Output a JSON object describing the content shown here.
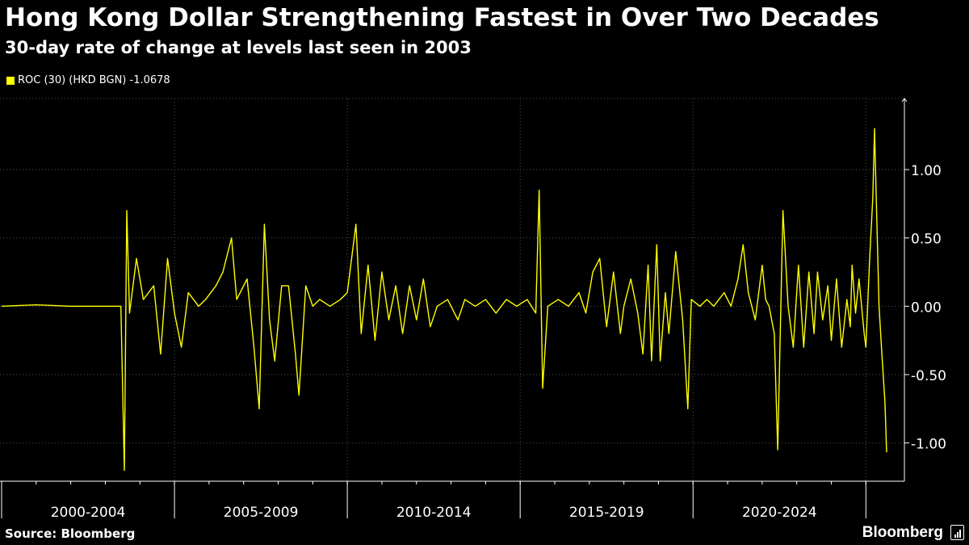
{
  "title": "Hong Kong Dollar Strengthening Fastest in Over Two Decades",
  "subtitle": "30-day rate of change at levels last seen in 2003",
  "legend": {
    "label": "ROC (30) (HKD BGN) -1.0678"
  },
  "source": "Source: Bloomberg",
  "brand": "Bloomberg",
  "colors": {
    "background": "#000000",
    "line": "#ffff00",
    "grid": "#555555",
    "text": "#ffffff"
  },
  "chart_data": {
    "type": "line",
    "title": "Hong Kong Dollar Strengthening Fastest in Over Two Decades",
    "subtitle": "30-day rate of change at levels last seen in 2003",
    "xlabel": "",
    "ylabel": "",
    "x_categories": [
      "2000-2004",
      "2005-2009",
      "2010-2014",
      "2015-2019",
      "2020-2024"
    ],
    "x_range": [
      2000.0,
      2025.6
    ],
    "ylim": [
      -1.28,
      1.52
    ],
    "yticks": [
      1.0,
      0.5,
      0.0,
      -0.5,
      -1.0
    ],
    "ytick_labels": [
      "1.00",
      "0.50",
      "0.00",
      "-0.50",
      "-1.00"
    ],
    "y_axis_position": "right",
    "grid": true,
    "legend_position": "top-left",
    "series": [
      {
        "name": "ROC (30) (HKD BGN)",
        "last_value": -1.0678,
        "points": [
          [
            2000.0,
            0.0
          ],
          [
            2001.0,
            0.01
          ],
          [
            2002.0,
            0.0
          ],
          [
            2003.0,
            0.0
          ],
          [
            2003.45,
            0.0
          ],
          [
            2003.55,
            -1.2
          ],
          [
            2003.62,
            0.7
          ],
          [
            2003.7,
            -0.05
          ],
          [
            2003.9,
            0.35
          ],
          [
            2004.1,
            0.05
          ],
          [
            2004.4,
            0.15
          ],
          [
            2004.6,
            -0.35
          ],
          [
            2004.8,
            0.35
          ],
          [
            2005.0,
            -0.05
          ],
          [
            2005.2,
            -0.3
          ],
          [
            2005.4,
            0.1
          ],
          [
            2005.7,
            0.0
          ],
          [
            2005.9,
            0.05
          ],
          [
            2006.2,
            0.15
          ],
          [
            2006.4,
            0.25
          ],
          [
            2006.65,
            0.5
          ],
          [
            2006.8,
            0.05
          ],
          [
            2007.1,
            0.2
          ],
          [
            2007.3,
            -0.3
          ],
          [
            2007.45,
            -0.75
          ],
          [
            2007.6,
            0.6
          ],
          [
            2007.75,
            -0.1
          ],
          [
            2007.9,
            -0.4
          ],
          [
            2008.1,
            0.15
          ],
          [
            2008.3,
            0.15
          ],
          [
            2008.5,
            -0.35
          ],
          [
            2008.6,
            -0.65
          ],
          [
            2008.8,
            0.15
          ],
          [
            2009.0,
            0.0
          ],
          [
            2009.2,
            0.05
          ],
          [
            2009.5,
            0.0
          ],
          [
            2009.8,
            0.05
          ],
          [
            2010.0,
            0.1
          ],
          [
            2010.25,
            0.6
          ],
          [
            2010.4,
            -0.2
          ],
          [
            2010.6,
            0.3
          ],
          [
            2010.8,
            -0.25
          ],
          [
            2011.0,
            0.25
          ],
          [
            2011.2,
            -0.1
          ],
          [
            2011.4,
            0.15
          ],
          [
            2011.6,
            -0.2
          ],
          [
            2011.8,
            0.15
          ],
          [
            2012.0,
            -0.1
          ],
          [
            2012.2,
            0.2
          ],
          [
            2012.4,
            -0.15
          ],
          [
            2012.6,
            0.0
          ],
          [
            2012.9,
            0.05
          ],
          [
            2013.2,
            -0.1
          ],
          [
            2013.4,
            0.05
          ],
          [
            2013.7,
            0.0
          ],
          [
            2014.0,
            0.05
          ],
          [
            2014.3,
            -0.05
          ],
          [
            2014.6,
            0.05
          ],
          [
            2014.9,
            0.0
          ],
          [
            2015.2,
            0.05
          ],
          [
            2015.45,
            -0.05
          ],
          [
            2015.55,
            0.85
          ],
          [
            2015.65,
            -0.6
          ],
          [
            2015.8,
            0.0
          ],
          [
            2016.1,
            0.05
          ],
          [
            2016.4,
            0.0
          ],
          [
            2016.7,
            0.1
          ],
          [
            2016.9,
            -0.05
          ],
          [
            2017.1,
            0.25
          ],
          [
            2017.3,
            0.35
          ],
          [
            2017.5,
            -0.15
          ],
          [
            2017.7,
            0.25
          ],
          [
            2017.9,
            -0.2
          ],
          [
            2018.0,
            0.0
          ],
          [
            2018.2,
            0.2
          ],
          [
            2018.4,
            -0.05
          ],
          [
            2018.55,
            -0.35
          ],
          [
            2018.7,
            0.3
          ],
          [
            2018.8,
            -0.4
          ],
          [
            2018.95,
            0.45
          ],
          [
            2019.05,
            -0.4
          ],
          [
            2019.2,
            0.1
          ],
          [
            2019.3,
            -0.2
          ],
          [
            2019.5,
            0.4
          ],
          [
            2019.7,
            -0.1
          ],
          [
            2019.85,
            -0.75
          ],
          [
            2019.95,
            0.05
          ],
          [
            2020.2,
            0.0
          ],
          [
            2020.4,
            0.05
          ],
          [
            2020.6,
            0.0
          ],
          [
            2020.9,
            0.1
          ],
          [
            2021.1,
            0.0
          ],
          [
            2021.3,
            0.2
          ],
          [
            2021.45,
            0.45
          ],
          [
            2021.6,
            0.1
          ],
          [
            2021.8,
            -0.1
          ],
          [
            2022.0,
            0.3
          ],
          [
            2022.1,
            0.05
          ],
          [
            2022.2,
            0.0
          ],
          [
            2022.35,
            -0.2
          ],
          [
            2022.45,
            -1.05
          ],
          [
            2022.6,
            0.7
          ],
          [
            2022.75,
            0.0
          ],
          [
            2022.9,
            -0.3
          ],
          [
            2023.05,
            0.3
          ],
          [
            2023.2,
            -0.3
          ],
          [
            2023.35,
            0.25
          ],
          [
            2023.5,
            -0.2
          ],
          [
            2023.6,
            0.25
          ],
          [
            2023.75,
            -0.1
          ],
          [
            2023.9,
            0.15
          ],
          [
            2024.0,
            -0.25
          ],
          [
            2024.15,
            0.2
          ],
          [
            2024.3,
            -0.3
          ],
          [
            2024.45,
            0.05
          ],
          [
            2024.55,
            -0.15
          ],
          [
            2024.6,
            0.3
          ],
          [
            2024.7,
            -0.05
          ],
          [
            2024.8,
            0.2
          ],
          [
            2024.95,
            -0.2
          ],
          [
            2025.0,
            -0.3
          ],
          [
            2025.1,
            0.3
          ],
          [
            2025.2,
            0.8
          ],
          [
            2025.25,
            1.3
          ],
          [
            2025.33,
            0.5
          ],
          [
            2025.38,
            0.0
          ],
          [
            2025.45,
            -0.3
          ],
          [
            2025.55,
            -0.7
          ],
          [
            2025.6,
            -1.0678
          ]
        ]
      }
    ]
  }
}
